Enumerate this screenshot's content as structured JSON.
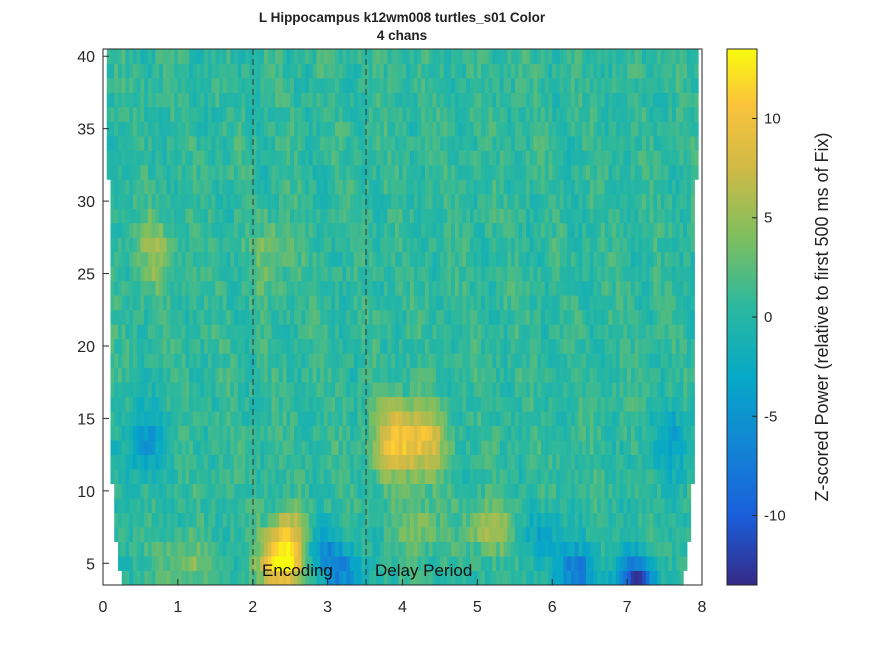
{
  "chart_data": {
    "type": "heatmap",
    "title": "L Hippocampus k12wm008 turtles_s01 Color",
    "subtitle": "4 chans",
    "xlim": [
      0,
      8
    ],
    "ylim": [
      3.5,
      40.5
    ],
    "x_ticks": [
      "0",
      "1",
      "2",
      "3",
      "4",
      "5",
      "6",
      "7",
      "8"
    ],
    "y_ticks": [
      "5",
      "10",
      "15",
      "20",
      "25",
      "30",
      "35",
      "40"
    ],
    "colorbar": {
      "label": "Z-scored Power (relative to first 500 ms of Fix)",
      "range": [
        -13.5,
        13.5
      ],
      "ticks": [
        "10",
        "5",
        "0",
        "-5",
        "-10"
      ],
      "colormap": "parula"
    },
    "event_lines": [
      2,
      3.5
    ],
    "annotations": [
      {
        "text": "Encoding",
        "x": 2.12,
        "y": 4.1
      },
      {
        "text": "Delay Period",
        "x": 3.62,
        "y": 4.1
      }
    ],
    "time_step_s": 0.05,
    "frequencies_hz": [
      4,
      5,
      6,
      7,
      8,
      9,
      10,
      11,
      12,
      13,
      14,
      15,
      16,
      17,
      18,
      19,
      20,
      21,
      22,
      23,
      24,
      25,
      26,
      27,
      28,
      29,
      30,
      31,
      32,
      33,
      34,
      35,
      36,
      37,
      38,
      39,
      40
    ],
    "hotspots": [
      {
        "t": 2.4,
        "f": 5.0,
        "value": 13
      },
      {
        "t": 2.45,
        "f": 7.0,
        "value": 8
      },
      {
        "t": 1.1,
        "f": 5.0,
        "value": 4
      },
      {
        "t": 3.9,
        "f": 13.5,
        "value": 9
      },
      {
        "t": 4.3,
        "f": 13.5,
        "value": 8
      },
      {
        "t": 5.15,
        "f": 7.5,
        "value": 6
      },
      {
        "t": 4.2,
        "f": 7.5,
        "value": 4
      },
      {
        "t": 0.7,
        "f": 26.5,
        "value": 4
      },
      {
        "t": 2.25,
        "f": 26.5,
        "value": 3
      },
      {
        "t": 3.2,
        "f": 4.5,
        "value": -7
      },
      {
        "t": 6.3,
        "f": 4.5,
        "value": -8
      },
      {
        "t": 7.1,
        "f": 4.0,
        "value": -12
      },
      {
        "t": 5.9,
        "f": 7.0,
        "value": -4
      },
      {
        "t": 0.55,
        "f": 13.5,
        "value": -5
      },
      {
        "t": 2.9,
        "f": 6.0,
        "value": -5
      },
      {
        "t": 7.6,
        "f": 13.5,
        "value": -4
      }
    ]
  }
}
